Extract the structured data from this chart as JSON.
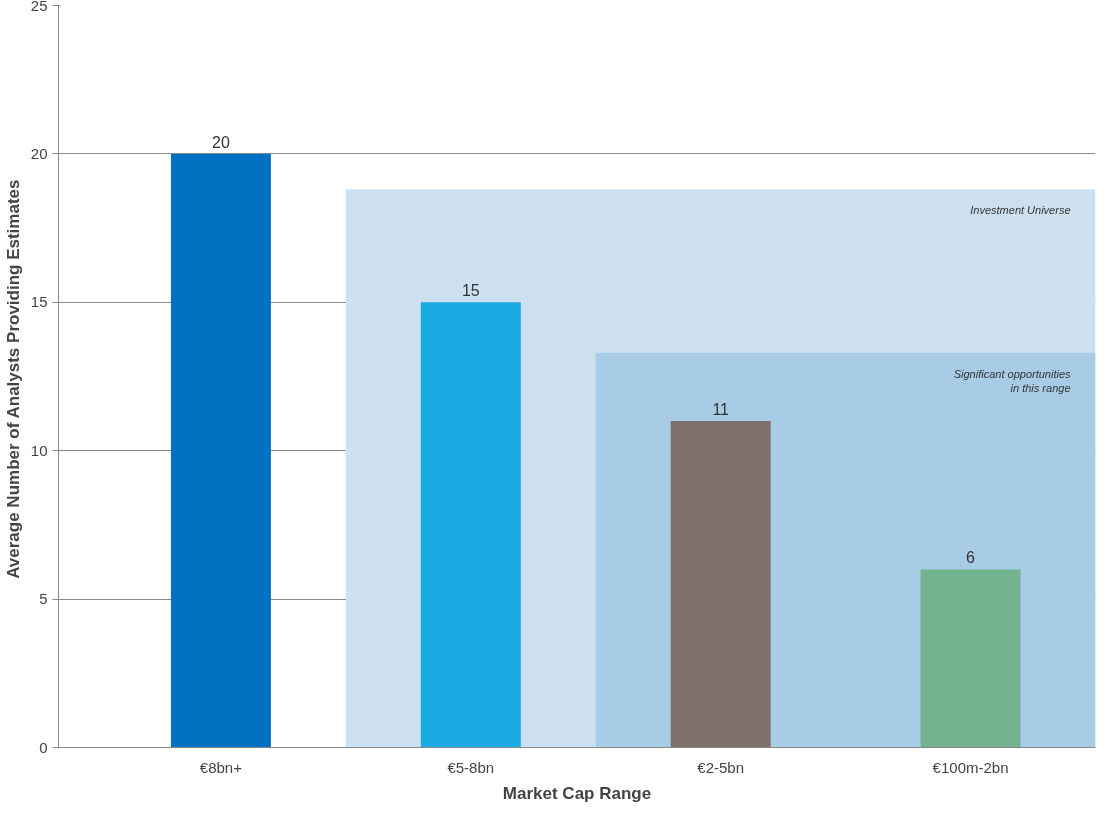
{
  "chart_data": {
    "type": "bar",
    "xlabel": "Market Cap Range",
    "ylabel": "Average Number of Analysts Providing  Estimates",
    "categories": [
      "€8bn+",
      "€5-8bn",
      "€2-5bn",
      "€100m-2bn"
    ],
    "values": [
      20,
      15,
      11,
      6
    ],
    "colors": [
      "#0070c0",
      "#1ba9e1",
      "#7f6f6c",
      "#73b38f"
    ],
    "data_labels": true,
    "ylim": [
      0,
      25
    ],
    "yticks": [
      0,
      5,
      10,
      15,
      20,
      25
    ],
    "grid": "y",
    "bands": [
      {
        "axis": "y",
        "from": 0,
        "to": 18.8,
        "label": "Investment Universe",
        "color": "#cce0f0"
      },
      {
        "axis": "y",
        "from": 0,
        "to": 13.3,
        "label": "Significant opportunities\nin this range",
        "color": "#a9cce6"
      }
    ]
  }
}
